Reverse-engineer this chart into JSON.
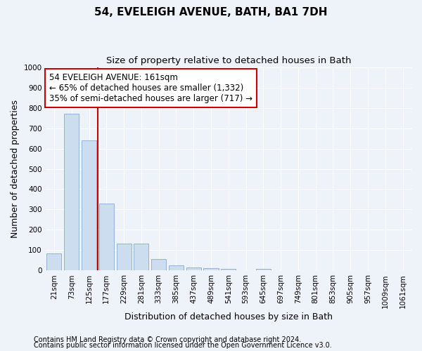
{
  "title": "54, EVELEIGH AVENUE, BATH, BA1 7DH",
  "subtitle": "Size of property relative to detached houses in Bath",
  "xlabel": "Distribution of detached houses by size in Bath",
  "ylabel": "Number of detached properties",
  "categories": [
    "21sqm",
    "73sqm",
    "125sqm",
    "177sqm",
    "229sqm",
    "281sqm",
    "333sqm",
    "385sqm",
    "437sqm",
    "489sqm",
    "541sqm",
    "593sqm",
    "645sqm",
    "697sqm",
    "749sqm",
    "801sqm",
    "853sqm",
    "905sqm",
    "957sqm",
    "1009sqm",
    "1061sqm"
  ],
  "values": [
    83,
    770,
    640,
    330,
    133,
    133,
    58,
    25,
    17,
    13,
    10,
    0,
    10,
    0,
    0,
    0,
    0,
    0,
    0,
    0,
    0
  ],
  "bar_color": "#ccddf0",
  "bar_edge_color": "#88aacc",
  "vline_x": 2.5,
  "vline_color": "#cc0000",
  "annotation_text": "54 EVELEIGH AVENUE: 161sqm\n← 65% of detached houses are smaller (1,332)\n35% of semi-detached houses are larger (717) →",
  "annotation_box_facecolor": "#ffffff",
  "annotation_box_edgecolor": "#cc0000",
  "ylim": [
    0,
    1000
  ],
  "yticks": [
    0,
    100,
    200,
    300,
    400,
    500,
    600,
    700,
    800,
    900,
    1000
  ],
  "footer_line1": "Contains HM Land Registry data © Crown copyright and database right 2024.",
  "footer_line2": "Contains public sector information licensed under the Open Government Licence v3.0.",
  "background_color": "#eef3fa",
  "grid_color": "#ffffff",
  "title_fontsize": 11,
  "subtitle_fontsize": 9.5,
  "axis_label_fontsize": 9,
  "tick_fontsize": 7.5,
  "annotation_fontsize": 8.5,
  "footer_fontsize": 7
}
